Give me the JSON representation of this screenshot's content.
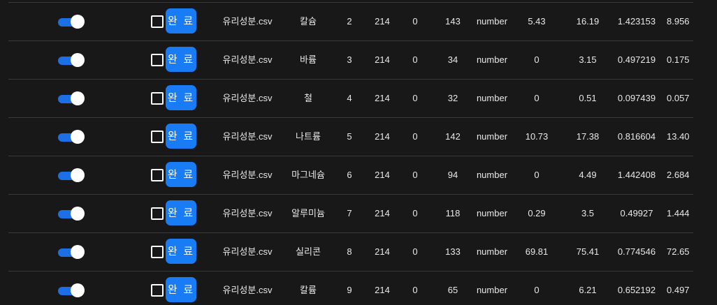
{
  "table": {
    "done_label": "완 료",
    "rows": [
      {
        "file": "유리성분.csv",
        "name": "칼슘",
        "idx": "2",
        "count": "214",
        "missing": "0",
        "unique": "143",
        "type": "number",
        "min": "5.43",
        "max": "16.19",
        "std": "1.423153",
        "mean": "8.956"
      },
      {
        "file": "유리성분.csv",
        "name": "바륨",
        "idx": "3",
        "count": "214",
        "missing": "0",
        "unique": "34",
        "type": "number",
        "min": "0",
        "max": "3.15",
        "std": "0.497219",
        "mean": "0.175"
      },
      {
        "file": "유리성분.csv",
        "name": "철",
        "idx": "4",
        "count": "214",
        "missing": "0",
        "unique": "32",
        "type": "number",
        "min": "0",
        "max": "0.51",
        "std": "0.097439",
        "mean": "0.057"
      },
      {
        "file": "유리성분.csv",
        "name": "나트륨",
        "idx": "5",
        "count": "214",
        "missing": "0",
        "unique": "142",
        "type": "number",
        "min": "10.73",
        "max": "17.38",
        "std": "0.816604",
        "mean": "13.40"
      },
      {
        "file": "유리성분.csv",
        "name": "마그네슘",
        "idx": "6",
        "count": "214",
        "missing": "0",
        "unique": "94",
        "type": "number",
        "min": "0",
        "max": "4.49",
        "std": "1.442408",
        "mean": "2.684"
      },
      {
        "file": "유리성분.csv",
        "name": "알루미늄",
        "idx": "7",
        "count": "214",
        "missing": "0",
        "unique": "118",
        "type": "number",
        "min": "0.29",
        "max": "3.5",
        "std": "0.49927",
        "mean": "1.444"
      },
      {
        "file": "유리성분.csv",
        "name": "실리콘",
        "idx": "8",
        "count": "214",
        "missing": "0",
        "unique": "133",
        "type": "number",
        "min": "69.81",
        "max": "75.41",
        "std": "0.774546",
        "mean": "72.65"
      },
      {
        "file": "유리성분.csv",
        "name": "칼륨",
        "idx": "9",
        "count": "214",
        "missing": "0",
        "unique": "65",
        "type": "number",
        "min": "0",
        "max": "6.21",
        "std": "0.652192",
        "mean": "0.497"
      }
    ]
  },
  "colors": {
    "background": "#181818",
    "toggle_on": "#1d6fe6",
    "button": "#1a7cf5",
    "divider": "#3a3a3a"
  },
  "icons": {
    "toggle": "toggle-switch-on",
    "checkbox": "checkbox-unchecked"
  }
}
